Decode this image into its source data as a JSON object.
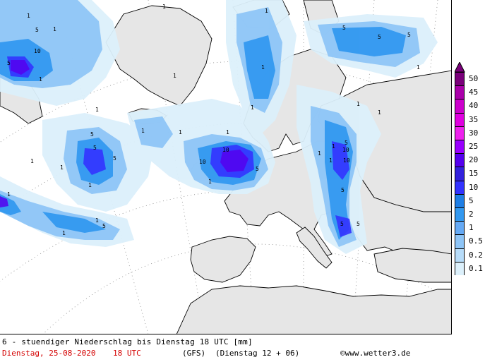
{
  "map": {
    "type": "precipitation-forecast-map",
    "region": "Europe / North Atlantic",
    "contour_labels": [
      "1",
      "5",
      "10",
      "1",
      "5",
      "1",
      "1",
      "5",
      "10",
      "1",
      "5",
      "1",
      "1",
      "5",
      "1",
      "1",
      "1",
      "5",
      "10",
      "5",
      "1",
      "1",
      "1",
      "1",
      "5",
      "5",
      "10",
      "1",
      "5",
      "10",
      "5",
      "1",
      "1",
      "5",
      "1",
      "1",
      "5",
      "1",
      "1",
      "1",
      "1",
      "5",
      "1",
      "1"
    ]
  },
  "legend": {
    "levels": [
      "50",
      "45",
      "40",
      "35",
      "30",
      "25",
      "20",
      "15",
      "10",
      "5",
      "2",
      "1",
      "0.5",
      "0.2",
      "0.1"
    ],
    "colors": [
      "#7a007a",
      "#aa00aa",
      "#cc00cc",
      "#e000e0",
      "#ee22ee",
      "#9900ff",
      "#5500ee",
      "#3322dd",
      "#3333ff",
      "#1f7fe6",
      "#3399f0",
      "#66aaf5",
      "#8ec5f7",
      "#b7dcf9",
      "#dcf0fb"
    ],
    "top_arrow_color": "#7a007a",
    "bottom_arrow_color": "#ffffff"
  },
  "footer": {
    "title": "6 - stuendiger Niederschlag bis Dienstag 18 UTC [mm]",
    "date": "Dienstag, 25-08-2020",
    "time": "18 UTC",
    "model": "(GFS)",
    "run": "(Dienstag 12 + 06)",
    "copyright_symbol": "©",
    "website": "www.wetter3.de"
  }
}
